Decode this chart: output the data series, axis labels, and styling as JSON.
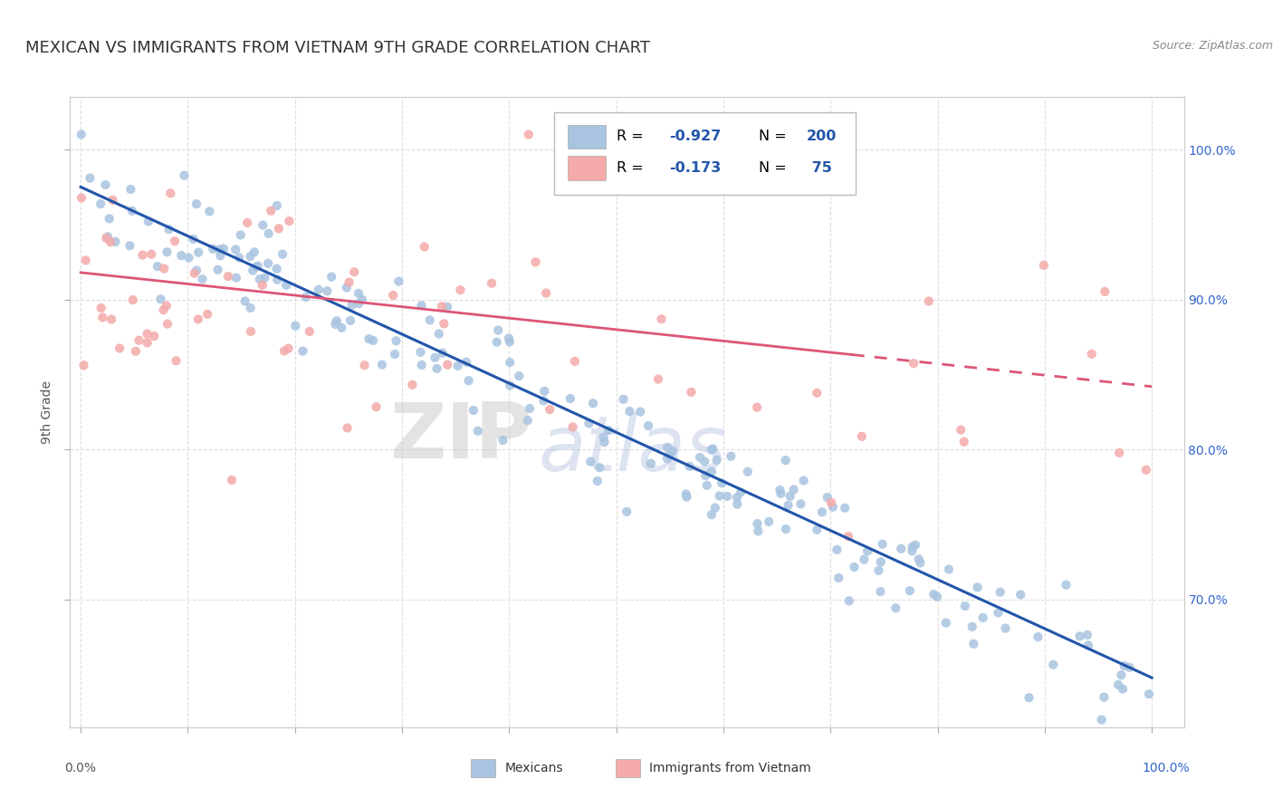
{
  "title": "MEXICAN VS IMMIGRANTS FROM VIETNAM 9TH GRADE CORRELATION CHART",
  "source": "Source: ZipAtlas.com",
  "ylabel": "9th Grade",
  "xlim": [
    -0.01,
    1.03
  ],
  "ylim": [
    0.615,
    1.035
  ],
  "ytick_values": [
    0.7,
    0.8,
    0.9,
    1.0
  ],
  "xtick_values": [
    0.0,
    0.1,
    0.2,
    0.3,
    0.4,
    0.5,
    0.6,
    0.7,
    0.8,
    0.9,
    1.0
  ],
  "blue_color": "#A8C4E0",
  "pink_color": "#F4AAAA",
  "line_blue": "#2255AA",
  "line_pink": "#DD5577",
  "watermark_zip": "ZIP",
  "watermark_atlas": "atlas",
  "title_fontsize": 13,
  "tick_fontsize": 10,
  "background_color": "#FFFFFF",
  "grid_color": "#DDDDDD",
  "blue_line_start_x": 0.0,
  "blue_line_start_y": 0.975,
  "blue_line_end_x": 1.0,
  "blue_line_end_y": 0.648,
  "pink_line_start_x": 0.0,
  "pink_line_start_y": 0.918,
  "pink_line_solid_end_x": 0.72,
  "pink_line_end_x": 1.0,
  "pink_line_end_y": 0.842
}
